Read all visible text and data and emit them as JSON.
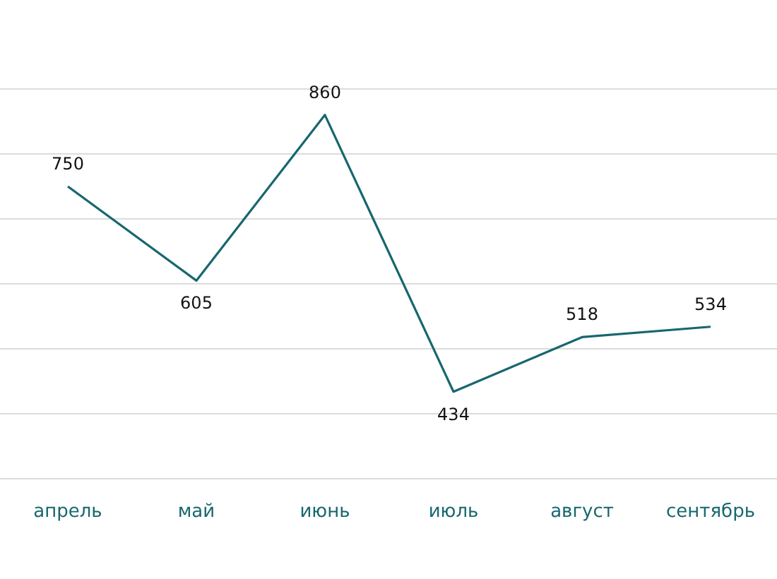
{
  "chart_data": {
    "type": "line",
    "categories": [
      "апрель",
      "май",
      "июнь",
      "июль",
      "август",
      "сентябрь"
    ],
    "series": [
      {
        "color": "#17676e",
        "values": [
          750,
          605,
          860,
          434,
          518,
          534
        ]
      }
    ],
    "ylim": [
      300,
      900
    ],
    "yticks": [
      {
        "value": 300,
        "label": null
      },
      {
        "value": 400,
        "label": null
      },
      {
        "value": 500,
        "label": null
      },
      {
        "value": 600,
        "label": null
      },
      {
        "value": 700,
        "label": null
      },
      {
        "value": 800,
        "label": null
      },
      {
        "value": 900,
        "label": null
      }
    ],
    "tick_labels": "x",
    "grid": "y",
    "data_labels": true,
    "marker": "none",
    "line_style": "solid"
  }
}
